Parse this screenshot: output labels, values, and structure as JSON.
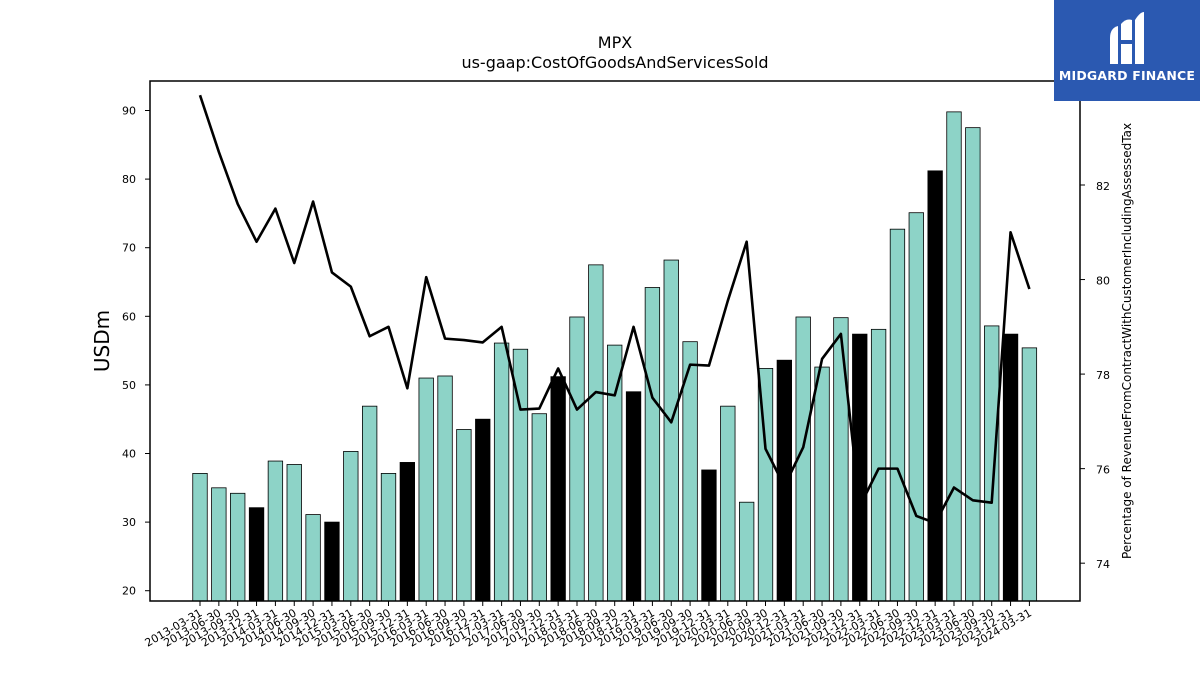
{
  "brand": {
    "name": "MIDGARD FINANCE",
    "color": "#2b59b1"
  },
  "chart_data": {
    "type": "bar",
    "title": "MPX",
    "subtitle": "us-gaap:CostOfGoodsAndServicesSold",
    "ylabel": "USDm",
    "ylabel_right": "Percentage of RevenueFromContractWithCustomerIncludingAssessedTax",
    "ylim": [
      18.5,
      94.3
    ],
    "ylim_right": [
      73.2,
      84.2
    ],
    "yticks": [
      20,
      30,
      40,
      50,
      60,
      70,
      80,
      90
    ],
    "yticks_right": [
      74,
      76,
      78,
      80,
      82
    ],
    "grid": false,
    "bar_color": "#8dd3c7",
    "highlight_color": "#000000",
    "line_color": "#000000",
    "categories": [
      "2013-03-31",
      "2013-06-30",
      "2013-09-30",
      "2013-12-31",
      "2014-03-31",
      "2014-06-30",
      "2014-09-30",
      "2014-12-31",
      "2015-03-31",
      "2015-06-30",
      "2015-09-30",
      "2015-12-31",
      "2016-03-31",
      "2016-06-30",
      "2016-09-30",
      "2016-12-31",
      "2017-03-31",
      "2017-06-30",
      "2017-09-30",
      "2017-12-31",
      "2018-03-31",
      "2018-06-30",
      "2018-09-30",
      "2018-12-31",
      "2019-03-31",
      "2019-06-30",
      "2019-09-30",
      "2019-12-31",
      "2020-03-31",
      "2020-06-30",
      "2020-09-30",
      "2020-12-31",
      "2021-03-31",
      "2021-06-30",
      "2021-09-30",
      "2021-12-31",
      "2022-03-31",
      "2022-06-30",
      "2022-09-30",
      "2022-12-31",
      "2023-03-31",
      "2023-06-30",
      "2023-09-30",
      "2023-12-31",
      "2024-03-31"
    ],
    "series": [
      {
        "kind": "bar",
        "values": [
          37.1,
          35.0,
          34.2,
          32.1,
          38.9,
          38.4,
          31.1,
          30.0,
          40.3,
          46.9,
          37.1,
          38.7,
          51.0,
          51.3,
          43.5,
          45.0,
          56.1,
          55.2,
          45.8,
          51.2,
          59.9,
          67.5,
          55.8,
          49.0,
          64.2,
          68.2,
          56.3,
          37.6,
          46.9,
          32.9,
          52.4,
          53.6,
          59.9,
          52.6,
          59.8,
          57.4,
          58.1,
          72.7,
          75.1,
          81.2,
          89.8,
          87.5,
          58.6,
          57.4,
          55.4
        ],
        "highlight": [
          false,
          false,
          false,
          true,
          false,
          false,
          false,
          true,
          false,
          false,
          false,
          true,
          false,
          false,
          false,
          true,
          false,
          false,
          false,
          true,
          false,
          false,
          false,
          true,
          false,
          false,
          false,
          true,
          false,
          false,
          false,
          true,
          false,
          false,
          false,
          true,
          false,
          false,
          false,
          true,
          false,
          false,
          false,
          true,
          false
        ]
      },
      {
        "kind": "line",
        "axis": "right",
        "values": [
          83.9,
          82.7,
          81.6,
          80.8,
          81.5,
          80.35,
          81.65,
          80.15,
          79.85,
          78.8,
          79.0,
          77.7,
          80.05,
          78.75,
          78.72,
          78.67,
          79.0,
          77.25,
          77.27,
          78.12,
          77.25,
          77.62,
          77.55,
          79.0,
          77.5,
          76.98,
          78.2,
          78.18,
          79.55,
          80.8,
          76.42,
          75.63,
          76.45,
          78.32,
          78.85,
          75.2,
          76.0,
          76.0,
          75.0,
          74.85,
          75.6,
          75.33,
          75.28,
          81.0,
          79.8
        ]
      }
    ]
  }
}
